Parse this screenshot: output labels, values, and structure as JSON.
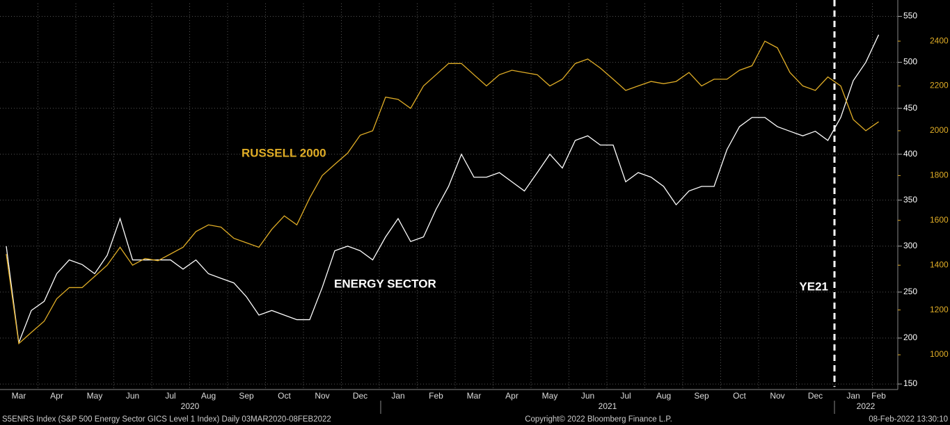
{
  "chart_data": {
    "type": "line",
    "categories": [
      null,
      "Mar",
      null,
      null,
      "Apr",
      null,
      null,
      "May",
      null,
      null,
      "Jun",
      null,
      null,
      "Jul",
      null,
      null,
      "Aug",
      null,
      null,
      "Sep",
      null,
      null,
      "Oct",
      null,
      null,
      "Nov",
      null,
      null,
      "Dec",
      null,
      null,
      "Jan",
      null,
      null,
      "Feb",
      null,
      null,
      "Mar",
      null,
      null,
      "Apr",
      null,
      null,
      "May",
      null,
      null,
      "Jun",
      null,
      null,
      "Jul",
      null,
      null,
      "Aug",
      null,
      null,
      "Sep",
      null,
      null,
      "Oct",
      null,
      null,
      "Nov",
      null,
      null,
      "Dec",
      null,
      null,
      "Jan",
      null,
      "Feb"
    ],
    "years": [
      "2020",
      "2021",
      "2022"
    ],
    "series": [
      {
        "name": "ENERGY SECTOR",
        "color": "#ffffff",
        "axis": "y",
        "values": [
          300,
          195,
          230,
          240,
          270,
          285,
          280,
          270,
          290,
          330,
          285,
          285,
          285,
          285,
          275,
          285,
          270,
          265,
          260,
          245,
          225,
          230,
          225,
          220,
          220,
          255,
          295,
          300,
          295,
          285,
          310,
          330,
          305,
          310,
          340,
          365,
          400,
          375,
          375,
          380,
          370,
          360,
          380,
          400,
          385,
          415,
          420,
          410,
          410,
          370,
          380,
          375,
          365,
          345,
          360,
          365,
          365,
          405,
          430,
          440,
          440,
          430,
          425,
          420,
          425,
          415,
          440,
          480,
          500,
          530
        ]
      },
      {
        "name": "RUSSELL 2000",
        "color": "#e0ad26",
        "axis": "y2",
        "values": [
          1450,
          1050,
          1100,
          1150,
          1250,
          1300,
          1300,
          1350,
          1400,
          1480,
          1400,
          1430,
          1420,
          1450,
          1480,
          1550,
          1580,
          1570,
          1520,
          1500,
          1480,
          1560,
          1620,
          1580,
          1700,
          1800,
          1850,
          1900,
          1980,
          2000,
          2150,
          2140,
          2100,
          2200,
          2250,
          2300,
          2300,
          2250,
          2200,
          2250,
          2270,
          2260,
          2250,
          2200,
          2230,
          2300,
          2320,
          2280,
          2230,
          2180,
          2200,
          2220,
          2210,
          2220,
          2260,
          2200,
          2230,
          2230,
          2270,
          2290,
          2400,
          2370,
          2260,
          2200,
          2180,
          2240,
          2200,
          2050,
          2000,
          2040
        ]
      }
    ],
    "ylim": [
      144,
      564
    ],
    "yticks": [
      150,
      200,
      250,
      300,
      350,
      400,
      450,
      500,
      550
    ],
    "y2lim": [
      845,
      2568
    ],
    "y2ticks": [
      1000,
      1200,
      1400,
      1600,
      1800,
      2000,
      2200,
      2400
    ],
    "grid": true,
    "marker_label": "YE21",
    "footer": {
      "left": "S5ENRS Index (S&P 500 Energy Sector GICS Level 1 Index)  Daily 03MAR2020-08FEB2022",
      "center": "Copyright© 2022 Bloomberg Finance L.P.",
      "right": "08-Feb-2022 13:30:10"
    }
  }
}
